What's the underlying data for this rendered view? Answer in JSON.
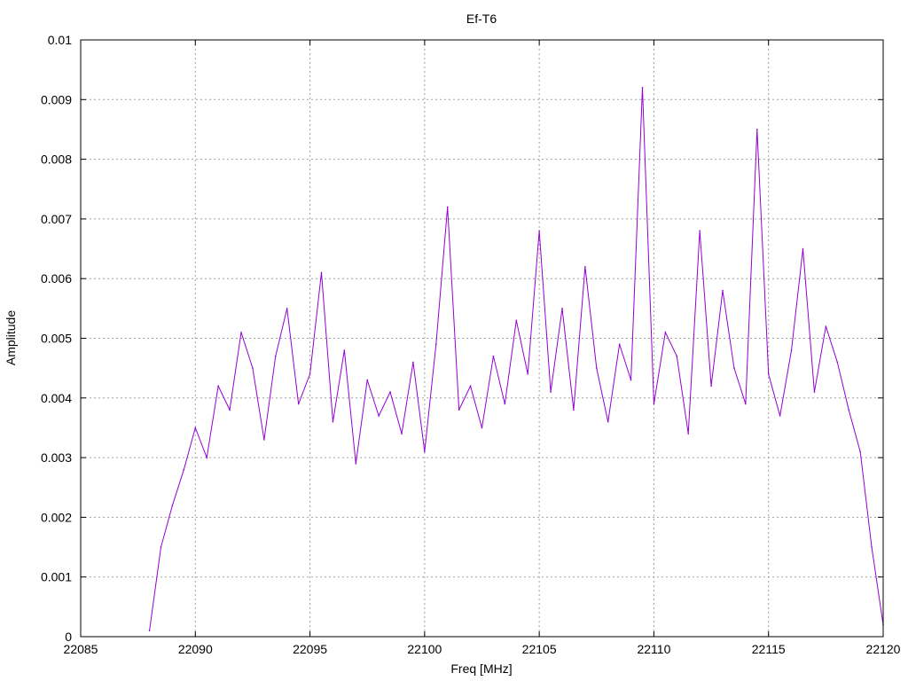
{
  "chart_data": {
    "type": "line",
    "title": "Ef-T6",
    "xlabel": "Freq [MHz]",
    "ylabel": "Amplitude",
    "xlim": [
      22085,
      22120
    ],
    "ylim": [
      0,
      0.01
    ],
    "x_ticks": [
      "22085",
      "22090",
      "22095",
      "22100",
      "22105",
      "22110",
      "22115",
      "22120"
    ],
    "y_ticks": [
      "0",
      "0.001",
      "0.002",
      "0.003",
      "0.004",
      "0.005",
      "0.006",
      "0.007",
      "0.008",
      "0.009",
      "0.01"
    ],
    "grid": true,
    "line_color": "#9400d3",
    "series": [
      {
        "x": [
          22088.0,
          22088.5,
          22089.0,
          22089.5,
          22090.0,
          22090.5,
          22091.0,
          22091.5,
          22092.0,
          22092.5,
          22093.0,
          22093.5,
          22094.0,
          22094.5,
          22095.0,
          22095.5,
          22096.0,
          22096.5,
          22097.0,
          22097.5,
          22098.0,
          22098.5,
          22099.0,
          22099.5,
          22100.0,
          22100.5,
          22101.0,
          22101.5,
          22102.0,
          22102.5,
          22103.0,
          22103.5,
          22104.0,
          22104.5,
          22105.0,
          22105.5,
          22106.0,
          22106.5,
          22107.0,
          22107.5,
          22108.0,
          22108.5,
          22109.0,
          22109.5,
          22110.0,
          22110.5,
          22111.0,
          22111.5,
          22112.0,
          22112.5,
          22113.0,
          22113.5,
          22114.0,
          22114.5,
          22115.0,
          22115.5,
          22116.0,
          22116.5,
          22117.0,
          22117.5,
          22118.0,
          22118.5,
          22119.0,
          22119.5,
          22120.0
        ],
        "y": [
          0.0001,
          0.0015,
          0.0022,
          0.0028,
          0.0035,
          0.003,
          0.0042,
          0.0038,
          0.0051,
          0.0045,
          0.0033,
          0.0047,
          0.0055,
          0.0039,
          0.0044,
          0.0061,
          0.0036,
          0.0048,
          0.0029,
          0.0043,
          0.0037,
          0.0041,
          0.0034,
          0.0046,
          0.0031,
          0.0049,
          0.0072,
          0.0038,
          0.0042,
          0.0035,
          0.0047,
          0.0039,
          0.0053,
          0.0044,
          0.0068,
          0.0041,
          0.0055,
          0.0038,
          0.0062,
          0.0045,
          0.0036,
          0.0049,
          0.0043,
          0.0092,
          0.0039,
          0.0051,
          0.0047,
          0.0034,
          0.0068,
          0.0042,
          0.0058,
          0.0045,
          0.0039,
          0.0085,
          0.0044,
          0.0037,
          0.0048,
          0.0065,
          0.0041,
          0.0052,
          0.0046,
          0.0038,
          0.0031,
          0.0015,
          0.0002
        ]
      }
    ]
  }
}
